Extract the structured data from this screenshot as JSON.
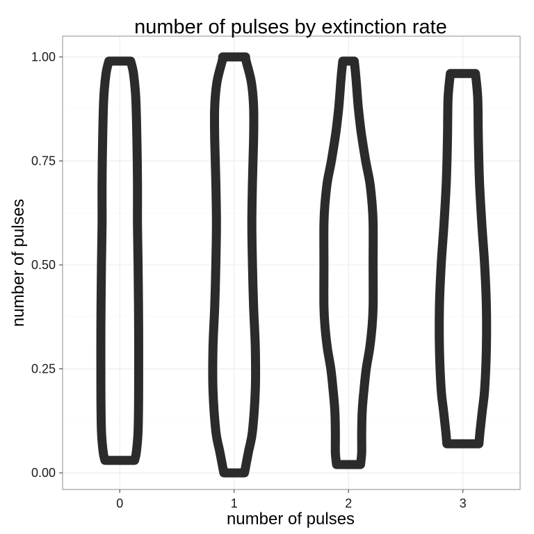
{
  "chart_data": {
    "type": "violin",
    "title": "number of pulses by extinction rate",
    "xlabel": "number of pulses",
    "ylabel": "number of pulses",
    "categories": [
      "0",
      "1",
      "2",
      "3"
    ],
    "ylim": [
      -0.04,
      1.05
    ],
    "yticks": [
      0.0,
      0.25,
      0.5,
      0.75,
      1.0
    ],
    "ytick_labels": [
      "0.00",
      "0.25",
      "0.50",
      "0.75",
      "1.00"
    ],
    "grid": true,
    "outline_color": "#2b2b2b",
    "violins": [
      {
        "category": "0",
        "ymin": 0.03,
        "ymax": 0.99,
        "profile": [
          {
            "y": 0.03,
            "w": 0.26
          },
          {
            "y": 0.05,
            "w": 0.29
          },
          {
            "y": 0.1,
            "w": 0.32
          },
          {
            "y": 0.2,
            "w": 0.33
          },
          {
            "y": 0.35,
            "w": 0.33
          },
          {
            "y": 0.5,
            "w": 0.32
          },
          {
            "y": 0.6,
            "w": 0.31
          },
          {
            "y": 0.7,
            "w": 0.31
          },
          {
            "y": 0.8,
            "w": 0.3
          },
          {
            "y": 0.9,
            "w": 0.28
          },
          {
            "y": 0.96,
            "w": 0.24
          },
          {
            "y": 0.99,
            "w": 0.19
          }
        ]
      },
      {
        "category": "1",
        "ymin": 0.0,
        "ymax": 1.0,
        "profile": [
          {
            "y": 0.0,
            "w": 0.18
          },
          {
            "y": 0.05,
            "w": 0.25
          },
          {
            "y": 0.1,
            "w": 0.32
          },
          {
            "y": 0.2,
            "w": 0.37
          },
          {
            "y": 0.3,
            "w": 0.37
          },
          {
            "y": 0.4,
            "w": 0.34
          },
          {
            "y": 0.5,
            "w": 0.32
          },
          {
            "y": 0.6,
            "w": 0.31
          },
          {
            "y": 0.7,
            "w": 0.32
          },
          {
            "y": 0.8,
            "w": 0.34
          },
          {
            "y": 0.88,
            "w": 0.34
          },
          {
            "y": 0.94,
            "w": 0.3
          },
          {
            "y": 0.99,
            "w": 0.21
          },
          {
            "y": 1.0,
            "w": 0.2
          }
        ]
      },
      {
        "category": "2",
        "ymin": 0.02,
        "ymax": 0.99,
        "profile": [
          {
            "y": 0.02,
            "w": 0.21
          },
          {
            "y": 0.05,
            "w": 0.23
          },
          {
            "y": 0.1,
            "w": 0.23
          },
          {
            "y": 0.15,
            "w": 0.24
          },
          {
            "y": 0.2,
            "w": 0.27
          },
          {
            "y": 0.25,
            "w": 0.31
          },
          {
            "y": 0.3,
            "w": 0.37
          },
          {
            "y": 0.35,
            "w": 0.41
          },
          {
            "y": 0.4,
            "w": 0.43
          },
          {
            "y": 0.5,
            "w": 0.43
          },
          {
            "y": 0.6,
            "w": 0.43
          },
          {
            "y": 0.65,
            "w": 0.41
          },
          {
            "y": 0.7,
            "w": 0.37
          },
          {
            "y": 0.75,
            "w": 0.3
          },
          {
            "y": 0.82,
            "w": 0.22
          },
          {
            "y": 0.88,
            "w": 0.17
          },
          {
            "y": 0.95,
            "w": 0.13
          },
          {
            "y": 0.99,
            "w": 0.1
          }
        ]
      },
      {
        "category": "3",
        "ymin": 0.07,
        "ymax": 0.96,
        "profile": [
          {
            "y": 0.07,
            "w": 0.28
          },
          {
            "y": 0.1,
            "w": 0.3
          },
          {
            "y": 0.15,
            "w": 0.34
          },
          {
            "y": 0.2,
            "w": 0.38
          },
          {
            "y": 0.3,
            "w": 0.41
          },
          {
            "y": 0.4,
            "w": 0.41
          },
          {
            "y": 0.5,
            "w": 0.38
          },
          {
            "y": 0.6,
            "w": 0.33
          },
          {
            "y": 0.7,
            "w": 0.29
          },
          {
            "y": 0.8,
            "w": 0.27
          },
          {
            "y": 0.9,
            "w": 0.26
          },
          {
            "y": 0.96,
            "w": 0.22
          }
        ]
      }
    ]
  }
}
